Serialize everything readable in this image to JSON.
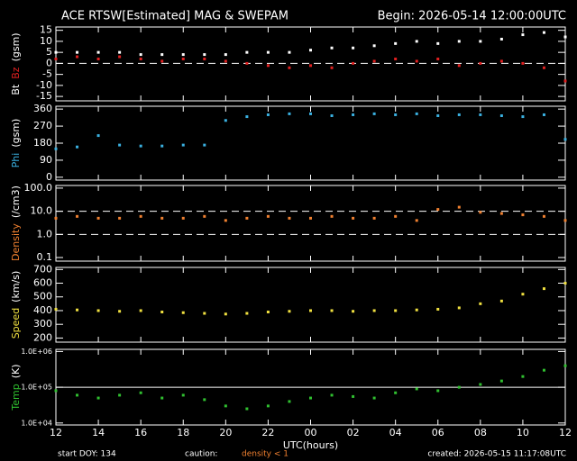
{
  "header": {
    "title": "ACE RTSW[Estimated] MAG & SWEPAM",
    "begin": "Begin: 2026-05-14 12:00:00UTC"
  },
  "footer": {
    "start": "start DOY: 134",
    "caution": "caution:",
    "caution_note": "density < 1",
    "caution_color": "#f08030",
    "created": "created: 2026-05-15 11:17:08UTC"
  },
  "chart_data": [
    {
      "type": "scatter",
      "ylabel": [
        {
          "text": "Bt",
          "color": "#ffffff"
        },
        {
          "text": "Bz",
          "color": "#e02020"
        },
        {
          "text": "(gsm)",
          "color": "#ffffff"
        }
      ],
      "x": [
        0,
        1,
        2,
        3,
        4,
        5,
        6,
        7,
        8,
        9,
        10,
        11,
        12,
        13,
        14,
        15,
        16,
        17,
        18,
        19,
        20,
        21,
        22,
        23,
        24
      ],
      "series": [
        {
          "name": "Bt",
          "color": "#ffffff",
          "values": [
            5,
            5,
            5,
            5,
            4,
            4,
            4,
            4,
            4,
            5,
            5,
            5,
            6,
            7,
            7,
            8,
            9,
            10,
            9,
            10,
            10,
            11,
            13,
            14,
            12
          ]
        },
        {
          "name": "Bz",
          "color": "#e02020",
          "values": [
            2,
            3,
            2,
            3,
            2,
            1,
            2,
            2,
            1,
            0,
            -1,
            -2,
            -1,
            -2,
            0,
            1,
            2,
            1,
            2,
            -1,
            0,
            1,
            0,
            -2,
            -8
          ]
        }
      ],
      "xlim": [
        0,
        24
      ],
      "xticks": [
        0,
        2,
        4,
        6,
        8,
        10,
        12,
        14,
        16,
        18,
        20,
        22,
        24
      ],
      "ylim": [
        -17,
        16.5
      ],
      "yticks": [
        15,
        10,
        5,
        0,
        -5,
        -10,
        -15
      ],
      "hlines": [
        {
          "value": 0,
          "dashed": true
        }
      ]
    },
    {
      "type": "scatter",
      "ylabel": [
        {
          "text": "Phi",
          "color": "#3ab0e0"
        },
        {
          "text": "(gsm)",
          "color": "#ffffff"
        }
      ],
      "x": [
        0,
        1,
        2,
        3,
        4,
        5,
        6,
        7,
        8,
        9,
        10,
        11,
        12,
        13,
        14,
        15,
        16,
        17,
        18,
        19,
        20,
        21,
        22,
        23,
        24
      ],
      "series": [
        {
          "name": "Phi",
          "color": "#3ab0e0",
          "values": [
            150,
            160,
            220,
            170,
            165,
            165,
            170,
            170,
            300,
            320,
            330,
            335,
            335,
            325,
            330,
            335,
            330,
            335,
            325,
            330,
            330,
            325,
            320,
            330,
            200
          ]
        }
      ],
      "xlim": [
        0,
        24
      ],
      "xticks": [
        0,
        2,
        4,
        6,
        8,
        10,
        12,
        14,
        16,
        18,
        20,
        22,
        24
      ],
      "ylim": [
        -15,
        375
      ],
      "yticks": [
        360,
        270,
        180,
        90,
        0
      ]
    },
    {
      "type": "scatter",
      "log_y": true,
      "ylabel": [
        {
          "text": "Density",
          "color": "#f08030"
        },
        {
          "text": "(/cm3)",
          "color": "#ffffff"
        }
      ],
      "x": [
        0,
        1,
        2,
        3,
        4,
        5,
        6,
        7,
        8,
        9,
        10,
        11,
        12,
        13,
        14,
        15,
        16,
        17,
        18,
        19,
        20,
        21,
        22,
        23,
        24
      ],
      "series": [
        {
          "name": "Density",
          "color": "#f08030",
          "values": [
            5,
            6,
            5,
            5,
            6,
            5,
            5,
            6,
            4,
            5,
            6,
            5,
            5,
            6,
            5,
            5,
            6,
            4,
            12,
            15,
            9,
            8,
            7,
            6,
            4
          ]
        }
      ],
      "xlim": [
        0,
        24
      ],
      "xticks": [
        0,
        2,
        4,
        6,
        8,
        10,
        12,
        14,
        16,
        18,
        20,
        22,
        24
      ],
      "ylim": [
        0.07,
        130
      ],
      "yticks": [
        {
          "value": 100,
          "label": "100.0"
        },
        {
          "value": 10,
          "label": "10.0"
        },
        {
          "value": 1,
          "label": "1.0"
        },
        0.1
      ],
      "hlines": [
        {
          "value": 10,
          "dashed": true
        },
        {
          "value": 1,
          "dashed": true
        }
      ]
    },
    {
      "type": "scatter",
      "ylabel": [
        {
          "text": "Speed",
          "color": "#f0e040"
        },
        {
          "text": "(km/s)",
          "color": "#ffffff"
        }
      ],
      "x": [
        0,
        1,
        2,
        3,
        4,
        5,
        6,
        7,
        8,
        9,
        10,
        11,
        12,
        13,
        14,
        15,
        16,
        17,
        18,
        19,
        20,
        21,
        22,
        23,
        24
      ],
      "series": [
        {
          "name": "Speed",
          "color": "#f0e040",
          "values": [
            410,
            405,
            400,
            395,
            400,
            390,
            385,
            380,
            375,
            380,
            390,
            395,
            400,
            400,
            395,
            400,
            400,
            405,
            410,
            420,
            450,
            470,
            520,
            560,
            600
          ]
        }
      ],
      "xlim": [
        0,
        24
      ],
      "xticks": [
        0,
        2,
        4,
        6,
        8,
        10,
        12,
        14,
        16,
        18,
        20,
        22,
        24
      ],
      "ylim": [
        170,
        715
      ],
      "yticks": [
        700,
        600,
        500,
        400,
        300,
        200
      ]
    },
    {
      "type": "scatter",
      "log_y": true,
      "ylabel": [
        {
          "text": "Temp",
          "color": "#30c030"
        },
        {
          "text": "(K)",
          "color": "#ffffff"
        }
      ],
      "x": [
        0,
        1,
        2,
        3,
        4,
        5,
        6,
        7,
        8,
        9,
        10,
        11,
        12,
        13,
        14,
        15,
        16,
        17,
        18,
        19,
        20,
        21,
        22,
        23,
        24
      ],
      "series": [
        {
          "name": "Temp",
          "color": "#30c030",
          "values": [
            80000,
            60000,
            50000,
            60000,
            70000,
            50000,
            60000,
            45000,
            30000,
            25000,
            30000,
            40000,
            50000,
            60000,
            55000,
            50000,
            70000,
            90000,
            80000,
            100000,
            120000,
            150000,
            200000,
            300000,
            400000
          ]
        }
      ],
      "xlim": [
        0,
        24
      ],
      "xlabel": "UTC(hours)",
      "xticks": [
        {
          "value": 0,
          "label": "12"
        },
        {
          "value": 2,
          "label": "14"
        },
        {
          "value": 4,
          "label": "16"
        },
        {
          "value": 6,
          "label": "18"
        },
        {
          "value": 8,
          "label": "20"
        },
        {
          "value": 10,
          "label": "22"
        },
        {
          "value": 12,
          "label": "00"
        },
        {
          "value": 14,
          "label": "02"
        },
        {
          "value": 16,
          "label": "04"
        },
        {
          "value": 18,
          "label": "06"
        },
        {
          "value": 20,
          "label": "08"
        },
        {
          "value": 22,
          "label": "10"
        },
        {
          "value": 24,
          "label": "12"
        }
      ],
      "ylim": [
        8800,
        1150000
      ],
      "yticks": [
        {
          "value": 10000,
          "label": "1.0E+04"
        },
        {
          "value": 100000,
          "label": "1.0E+05"
        },
        {
          "value": 1000000,
          "label": "1.0E+06"
        }
      ],
      "hlines": [
        {
          "value": 100000,
          "dashed": false
        }
      ]
    }
  ]
}
